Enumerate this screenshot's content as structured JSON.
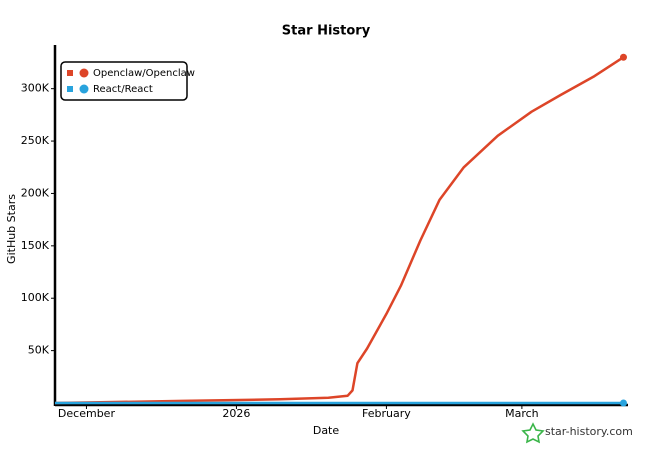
{
  "chart_data": {
    "type": "line",
    "title": "Star History",
    "x_label": "Date",
    "y_label": "GitHub Stars",
    "watermark": "star-history.com",
    "xlim": [
      -6.5,
      114
    ],
    "xticks": [
      {
        "value": 0,
        "label": "December"
      },
      {
        "value": 31,
        "label": "2026"
      },
      {
        "value": 62,
        "label": "February"
      },
      {
        "value": 90,
        "label": "March"
      }
    ],
    "ylim": [
      0,
      335000
    ],
    "yticks": [
      {
        "value": 50000,
        "label": "50K"
      },
      {
        "value": 100000,
        "label": "100K"
      },
      {
        "value": 150000,
        "label": "150K"
      },
      {
        "value": 200000,
        "label": "200K"
      },
      {
        "value": 250000,
        "label": "250K"
      },
      {
        "value": 300000,
        "label": "300K"
      }
    ],
    "legend": "top-left",
    "series": [
      {
        "name": "Openclaw/Openclaw",
        "color": "#dd4528",
        "x": [
          -6.5,
          0,
          20,
          40,
          50,
          54,
          55,
          56,
          58,
          62,
          65,
          69,
          73,
          78,
          85,
          92,
          98,
          105,
          111
        ],
        "values": [
          0,
          500,
          2000,
          3500,
          5000,
          7000,
          12000,
          38000,
          52000,
          85000,
          112000,
          155000,
          194000,
          225000,
          255000,
          278000,
          294000,
          312000,
          330000
        ]
      },
      {
        "name": "React/React",
        "color": "#28a3dd",
        "x": [
          -6.5,
          111
        ],
        "values": [
          0,
          0
        ]
      }
    ]
  }
}
